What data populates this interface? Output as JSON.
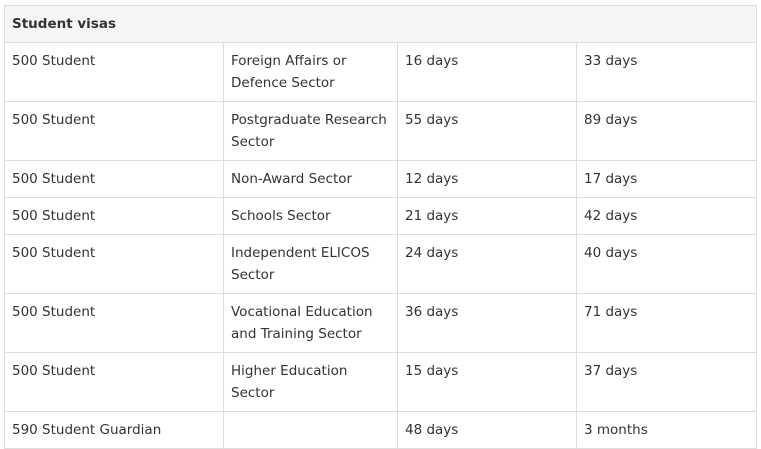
{
  "table": {
    "title": "Student visas",
    "rows": [
      [
        "500 Student",
        "Foreign Affairs or Defence Sector",
        "16 days",
        "33 days"
      ],
      [
        "500 Student",
        "Postgraduate Research Sector",
        "55 days",
        "89 days"
      ],
      [
        "500 Student",
        "Non-Award Sector",
        "12 days",
        "17 days"
      ],
      [
        "500 Student",
        "Schools Sector",
        "21 days",
        "42 days"
      ],
      [
        "500 Student",
        "Independent ELICOS Sector",
        "24 days",
        "40 days"
      ],
      [
        "500 Student",
        "Vocational Education and Training Sector",
        "36 days",
        "71 days"
      ],
      [
        "500 Student",
        "Higher Education Sector",
        "15 days",
        "37 days"
      ],
      [
        "590 Student Guardian",
        null,
        "48 days",
        "3 months"
      ]
    ]
  }
}
